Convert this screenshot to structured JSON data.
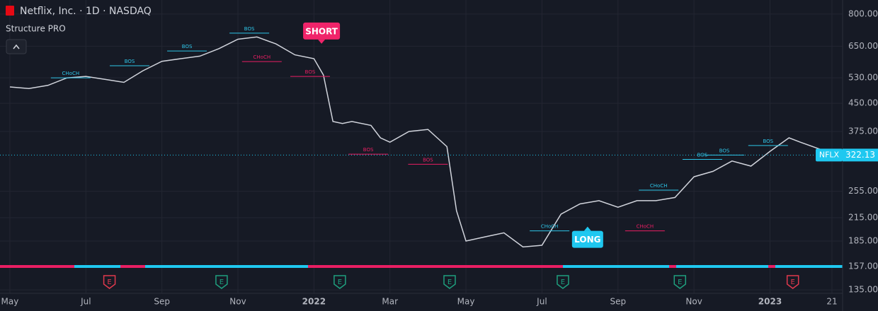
{
  "chart_data": {
    "type": "line",
    "title": "Netflix, Inc. · 1D · NASDAQ",
    "indicator": "Structure PRO",
    "log_scale": true,
    "grid": true,
    "ylim": [
      132,
      876
    ],
    "yticks": [
      {
        "value": 800,
        "label": "800.00"
      },
      {
        "value": 650,
        "label": "650.00"
      },
      {
        "value": 530,
        "label": "530.00"
      },
      {
        "value": 450,
        "label": "450.00"
      },
      {
        "value": 375,
        "label": "375.00"
      },
      {
        "value": 255,
        "label": "255.00"
      },
      {
        "value": 215,
        "label": "215.00"
      },
      {
        "value": 185,
        "label": "185.00"
      },
      {
        "value": 157,
        "label": "157.00"
      },
      {
        "value": 135,
        "label": "135.00"
      }
    ],
    "xlim": [
      -0.26,
      21.91
    ],
    "xticks": [
      {
        "value": 0,
        "label": "May"
      },
      {
        "value": 2,
        "label": "Jul"
      },
      {
        "value": 4,
        "label": "Sep"
      },
      {
        "value": 6,
        "label": "Nov"
      },
      {
        "value": 8,
        "label": "2022"
      },
      {
        "value": 10,
        "label": "Mar"
      },
      {
        "value": 12,
        "label": "May"
      },
      {
        "value": 14,
        "label": "Jul"
      },
      {
        "value": 16,
        "label": "Sep"
      },
      {
        "value": 18,
        "label": "Nov"
      },
      {
        "value": 20,
        "label": "2023"
      },
      {
        "value": 21.63,
        "label": "21"
      }
    ],
    "series": [
      {
        "name": "NFLX",
        "color": "#d1d4dc",
        "x": [
          0,
          0.5,
          1,
          1.5,
          2,
          2.5,
          3,
          3.5,
          4,
          4.5,
          5,
          5.5,
          6,
          6.5,
          7,
          7.5,
          8,
          8.25,
          8.5,
          8.75,
          9,
          9.5,
          9.75,
          10,
          10.5,
          11,
          11.5,
          11.75,
          12,
          12.5,
          13,
          13.5,
          14,
          14.5,
          15,
          15.5,
          16,
          16.5,
          17,
          17.5,
          18,
          18.5,
          19,
          19.5,
          20,
          20.5,
          20.8,
          21.3,
          21.7
        ],
        "values": [
          500,
          495,
          505,
          530,
          535,
          525,
          515,
          555,
          590,
          600,
          610,
          640,
          680,
          690,
          660,
          615,
          600,
          540,
          400,
          395,
          400,
          390,
          360,
          350,
          375,
          380,
          340,
          225,
          185,
          190,
          195,
          178,
          180,
          220,
          235,
          240,
          230,
          240,
          240,
          245,
          280,
          290,
          310,
          300,
          330,
          360,
          350,
          335,
          322.13
        ]
      }
    ],
    "annotations": [
      {
        "text": "CHoCH",
        "x": 1.6,
        "y": 545,
        "color": "#2ec5e8"
      },
      {
        "text": "BOS",
        "x": 3.15,
        "y": 589,
        "color": "#2ec5e8"
      },
      {
        "text": "BOS",
        "x": 4.66,
        "y": 648,
        "color": "#2ec5e8"
      },
      {
        "text": "BOS",
        "x": 6.3,
        "y": 727,
        "color": "#2ec5e8"
      },
      {
        "text": "CHoCH",
        "x": 6.63,
        "y": 605,
        "color": "#e91e63"
      },
      {
        "text": "BOS",
        "x": 7.9,
        "y": 550,
        "color": "#e91e63"
      },
      {
        "text": "BOS",
        "x": 9.43,
        "y": 333,
        "color": "#e91e63"
      },
      {
        "text": "BOS",
        "x": 11.0,
        "y": 312,
        "color": "#e91e63"
      },
      {
        "text": "CHoCH",
        "x": 14.2,
        "y": 203,
        "color": "#2ec5e8"
      },
      {
        "text": "CHoCH",
        "x": 17.07,
        "y": 264,
        "color": "#2ec5e8"
      },
      {
        "text": "CHoCH",
        "x": 16.71,
        "y": 203,
        "color": "#e91e63"
      },
      {
        "text": "BOS",
        "x": 18.22,
        "y": 322,
        "color": "#2ec5e8"
      },
      {
        "text": "BOS",
        "x": 18.8,
        "y": 331,
        "color": "#2ec5e8"
      },
      {
        "text": "BOS",
        "x": 19.95,
        "y": 352,
        "color": "#2ec5e8"
      }
    ],
    "signals": [
      {
        "text": "SHORT",
        "x": 8.2,
        "y": 717,
        "color": "#f0246a"
      },
      {
        "text": "LONG",
        "x": 15.2,
        "y": 187,
        "color": "#1fc8f0"
      }
    ],
    "earnings": [
      {
        "label": "E",
        "x": 2.62,
        "color": "#e0394d"
      },
      {
        "label": "E",
        "x": 5.57,
        "color": "#1f9f7e"
      },
      {
        "label": "E",
        "x": 8.68,
        "color": "#1f9f7e"
      },
      {
        "label": "E",
        "x": 11.57,
        "color": "#1f9f7e"
      },
      {
        "label": "E",
        "x": 14.55,
        "color": "#1f9f7e"
      },
      {
        "label": "E",
        "x": 17.63,
        "color": "#1f9f7e"
      },
      {
        "label": "E",
        "x": 20.6,
        "color": "#e0394d"
      }
    ]
  }
}
